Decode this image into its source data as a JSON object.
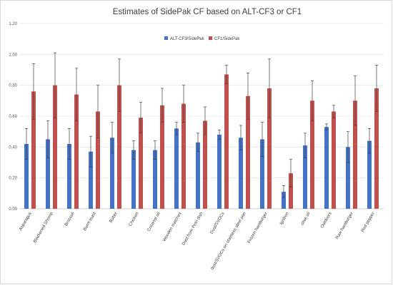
{
  "chart_data": {
    "type": "bar",
    "title": "Estimates of SidePak CF based on ALT-CF3 or CF1",
    "xlabel": "",
    "ylabel": "",
    "ylim": [
      0,
      1.2
    ],
    "yticks": [
      "0.00",
      "0.20",
      "0.40",
      "0.60",
      "0.80",
      "1.00",
      "1.20"
    ],
    "grid": true,
    "legend_position": "top-center",
    "categories": [
      "Asparagus",
      "Blackened Shrimp",
      "Broccoli",
      "Burnt toast",
      "Butter",
      "Chicken",
      "Coconut oil",
      "Wooden matches",
      "Dust from Petri dish",
      "Dust/SVOCs",
      "dust/SVOCs on stainless steel pan",
      "Frozen hamburger",
      "Ignition",
      "olive oil",
      "Outdoors",
      "Raw hamburger",
      "Red pepper"
    ],
    "series": [
      {
        "name": "ALT-CF3/SidePak",
        "color": "#4472c4",
        "values": [
          0.42,
          0.45,
          0.42,
          0.37,
          0.46,
          0.38,
          0.38,
          0.52,
          0.43,
          0.48,
          0.46,
          0.45,
          0.11,
          0.41,
          0.53,
          0.4,
          0.44
        ],
        "errors": [
          0.1,
          0.12,
          0.1,
          0.1,
          0.1,
          0.06,
          0.06,
          0.04,
          0.06,
          0.03,
          0.08,
          0.11,
          0.04,
          0.08,
          0.02,
          0.1,
          0.08
        ]
      },
      {
        "name": "CF1/SidePak",
        "color": "#c0504d",
        "values": [
          0.76,
          0.8,
          0.74,
          0.63,
          0.8,
          0.59,
          0.67,
          0.68,
          0.57,
          0.87,
          0.73,
          0.78,
          0.23,
          0.7,
          0.63,
          0.7,
          0.78
        ],
        "errors": [
          0.18,
          0.21,
          0.17,
          0.17,
          0.17,
          0.1,
          0.11,
          0.12,
          0.09,
          0.06,
          0.15,
          0.19,
          0.09,
          0.13,
          0.04,
          0.16,
          0.15
        ]
      }
    ]
  }
}
